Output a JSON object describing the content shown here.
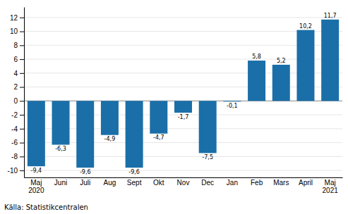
{
  "chart_data": {
    "type": "bar",
    "categories": [
      "Maj\n2020",
      "Juni",
      "Juli",
      "Aug",
      "Sept",
      "Okt",
      "Nov",
      "Dec",
      "Jan",
      "Feb",
      "Mars",
      "April",
      "Maj\n2021"
    ],
    "values": [
      -9.4,
      -6.3,
      -9.6,
      -4.9,
      -9.6,
      -4.7,
      -1.7,
      -7.5,
      -0.1,
      5.8,
      5.2,
      10.2,
      11.7
    ],
    "value_labels": [
      "-9,4",
      "-6,3",
      "-9,6",
      "-4,9",
      "-9,6",
      "-4,7",
      "-1,7",
      "-7,5",
      "-0,1",
      "5,8",
      "5,2",
      "10,2",
      "11,7"
    ],
    "color": "#1a6fa8",
    "ylim": [
      -11,
      13.5
    ],
    "yticks": [
      -10,
      -8,
      -6,
      -4,
      -2,
      0,
      2,
      4,
      6,
      8,
      10,
      12
    ],
    "grid": true,
    "data_labels": true,
    "annotations": [
      "Källa: Statistikcentralen"
    ]
  }
}
